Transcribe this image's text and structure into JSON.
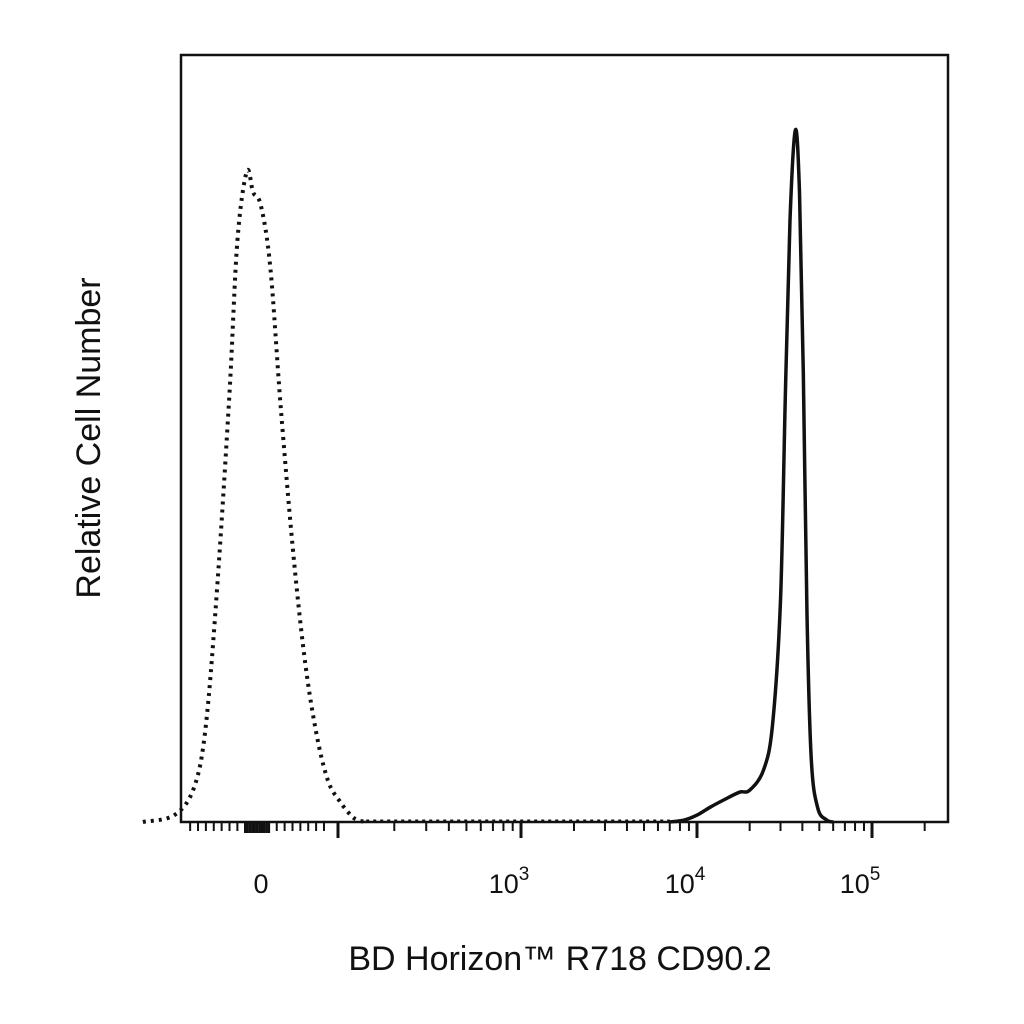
{
  "chart_data": {
    "type": "line",
    "title": "",
    "xlabel": "BD Horizon™ R718 CD90.2",
    "ylabel": "Relative Cell Number",
    "x_scale": "biexponential",
    "x_tick_labels": [
      {
        "value": 0,
        "base": "0",
        "exp": ""
      },
      {
        "value": 1000,
        "base": "10",
        "exp": "3"
      },
      {
        "value": 10000,
        "base": "10",
        "exp": "4"
      },
      {
        "value": 100000,
        "base": "10",
        "exp": "5"
      }
    ],
    "xlim": [
      -150,
      250000
    ],
    "ylim": [
      0,
      100
    ],
    "grid": false,
    "legend": "none",
    "series": [
      {
        "style": "dotted",
        "color": "#111111",
        "x": [
          -150,
          -110,
          -85,
          -70,
          -55,
          -40,
          -30,
          -18,
          -10,
          0,
          12,
          25,
          40,
          55,
          70,
          85,
          100,
          115,
          125,
          140
        ],
        "y": [
          0,
          1,
          5,
          14,
          35,
          62,
          84,
          94,
          91,
          89,
          80,
          60,
          40,
          24,
          13,
          6,
          3,
          1,
          0.3,
          0
        ]
      },
      {
        "style": "solid",
        "color": "#111111",
        "x": [
          7000,
          8500,
          10000,
          12000,
          14500,
          17500,
          20000,
          24000,
          27000,
          30000,
          32000,
          34000,
          36500,
          38500,
          40500,
          42500,
          45000,
          49000,
          55000,
          60000
        ],
        "y": [
          0,
          0.3,
          1,
          2.2,
          3.3,
          4.3,
          4.6,
          7.5,
          14,
          32,
          62,
          87,
          100,
          91,
          65,
          30,
          9,
          2,
          0.3,
          0
        ]
      }
    ]
  }
}
